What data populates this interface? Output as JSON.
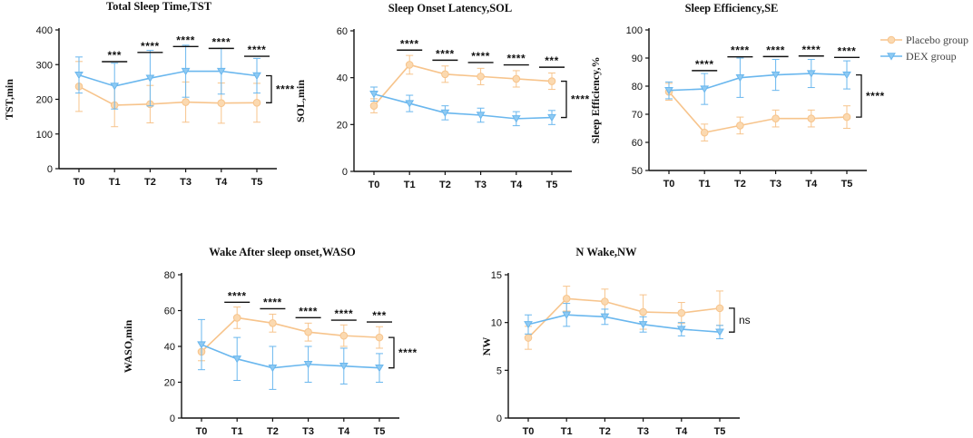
{
  "colors": {
    "placebo": "#f7c48c",
    "placebo_fill": "#fbd9b0",
    "dex": "#6ab7ee",
    "dex_fill": "#8ecaf3",
    "axis": "#111111"
  },
  "legend": {
    "items": [
      {
        "name": "Placebo group",
        "marker": "circle",
        "color_key": "placebo"
      },
      {
        "name": "DEX group",
        "marker": "triangle-down",
        "color_key": "dex"
      }
    ]
  },
  "chart_data": [
    {
      "type": "line",
      "title": "Total Sleep Time,TST",
      "ylabel": "TST,min",
      "xlabel": "",
      "categories": [
        "T0",
        "T1",
        "T2",
        "T3",
        "T4",
        "T5"
      ],
      "ylim": [
        0,
        400
      ],
      "yticks": [
        0,
        100,
        200,
        300,
        400
      ],
      "series": [
        {
          "name": "Placebo group",
          "values": [
            237,
            183,
            186,
            192,
            189,
            190
          ],
          "err": [
            72,
            62,
            54,
            58,
            58,
            56
          ]
        },
        {
          "name": "DEX group",
          "values": [
            270,
            238,
            261,
            281,
            281,
            268
          ],
          "err": [
            52,
            66,
            80,
            75,
            66,
            50
          ]
        }
      ],
      "significance": [
        "",
        "***",
        "****",
        "****",
        "****",
        "****"
      ],
      "overall_significance": "****"
    },
    {
      "type": "line",
      "title": "Sleep Onset Latency,SOL",
      "ylabel": "SOL,min",
      "xlabel": "",
      "categories": [
        "T0",
        "T1",
        "T2",
        "T3",
        "T4",
        "T5"
      ],
      "ylim": [
        0,
        60
      ],
      "yticks": [
        0,
        20,
        40,
        60
      ],
      "series": [
        {
          "name": "Placebo group",
          "values": [
            28,
            45.5,
            41.5,
            40.5,
            39.5,
            38.5
          ],
          "err": [
            3,
            4,
            3.5,
            3.5,
            3.5,
            3.5
          ]
        },
        {
          "name": "DEX group",
          "values": [
            33,
            29,
            25,
            24,
            22.5,
            23
          ],
          "err": [
            3,
            3.5,
            3,
            3,
            3,
            3
          ]
        }
      ],
      "significance": [
        "",
        "****",
        "****",
        "****",
        "****",
        "***"
      ],
      "overall_significance": "****"
    },
    {
      "type": "line",
      "title": "Sleep Efficiency,SE",
      "ylabel": "Sleep Efficiency,%",
      "xlabel": "",
      "categories": [
        "T0",
        "T1",
        "T2",
        "T3",
        "T4",
        "T5"
      ],
      "ylim": [
        50,
        100
      ],
      "yticks": [
        50,
        60,
        70,
        80,
        90,
        100
      ],
      "series": [
        {
          "name": "Placebo group",
          "values": [
            78,
            63.5,
            66,
            68.5,
            68.5,
            69
          ],
          "err": [
            3,
            3,
            3,
            3,
            3,
            4
          ]
        },
        {
          "name": "DEX group",
          "values": [
            78.5,
            79,
            83,
            84,
            84.5,
            84
          ],
          "err": [
            3,
            5.5,
            7,
            5.5,
            5,
            5
          ]
        }
      ],
      "significance": [
        "",
        "****",
        "****",
        "****",
        "****",
        "****"
      ],
      "overall_significance": "****"
    },
    {
      "type": "line",
      "title": "Wake After sleep onset,WASO",
      "ylabel": "WASO,min",
      "xlabel": "",
      "categories": [
        "T0",
        "T1",
        "T2",
        "T3",
        "T4",
        "T5"
      ],
      "ylim": [
        0,
        80
      ],
      "yticks": [
        0,
        20,
        40,
        60,
        80
      ],
      "series": [
        {
          "name": "Placebo group",
          "values": [
            37,
            56,
            53,
            48,
            46,
            45
          ],
          "err": [
            5,
            6,
            5,
            5,
            6,
            6
          ]
        },
        {
          "name": "DEX group",
          "values": [
            41,
            33,
            28,
            30,
            29,
            28
          ],
          "err": [
            14,
            12,
            12,
            10,
            10,
            8
          ]
        }
      ],
      "significance": [
        "",
        "****",
        "****",
        "****",
        "****",
        "***"
      ],
      "overall_significance": "****"
    },
    {
      "type": "line",
      "title": "N Wake,NW",
      "ylabel": "NW",
      "xlabel": "",
      "categories": [
        "T0",
        "T1",
        "T2",
        "T3",
        "T4",
        "T5"
      ],
      "ylim": [
        0,
        15
      ],
      "yticks": [
        0,
        5,
        10,
        15
      ],
      "series": [
        {
          "name": "Placebo group",
          "values": [
            8.4,
            12.5,
            12.2,
            11.1,
            11.0,
            11.5
          ],
          "err": [
            1.2,
            1.3,
            1.3,
            1.8,
            1.1,
            1.8
          ]
        },
        {
          "name": "DEX group",
          "values": [
            9.8,
            10.8,
            10.6,
            9.8,
            9.3,
            9.0
          ],
          "err": [
            1.0,
            1.2,
            0.8,
            0.8,
            0.7,
            0.7
          ]
        }
      ],
      "significance": [
        "",
        "",
        "",
        "",
        "",
        ""
      ],
      "overall_significance": "ns"
    }
  ]
}
